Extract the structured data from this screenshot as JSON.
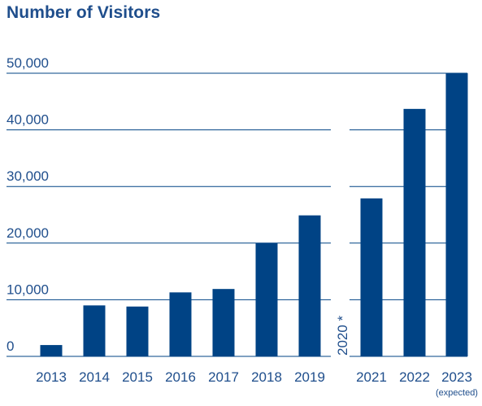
{
  "chart_data": {
    "type": "bar",
    "title": "Number of Visitors",
    "xlabel": "",
    "ylabel": "",
    "ylim": [
      0,
      50000
    ],
    "y_ticks": [
      0,
      10000,
      20000,
      30000,
      40000,
      50000
    ],
    "y_tick_labels": [
      "0",
      "10,000",
      "20,000",
      "30,000",
      "40,000",
      "50,000"
    ],
    "grid": true,
    "bar_color": "#004385",
    "grid_color": "#004385",
    "text_color": "#1f4e8c",
    "categories": [
      "2013",
      "2014",
      "2015",
      "2016",
      "2017",
      "2018",
      "2019",
      "2021",
      "2022",
      "2023"
    ],
    "values": [
      2000,
      9000,
      8800,
      11300,
      11900,
      20000,
      24900,
      27900,
      43700,
      50000
    ],
    "gap_label": "2020 *",
    "annotations": [
      {
        "category": "2023",
        "text": "(expected)"
      }
    ]
  }
}
